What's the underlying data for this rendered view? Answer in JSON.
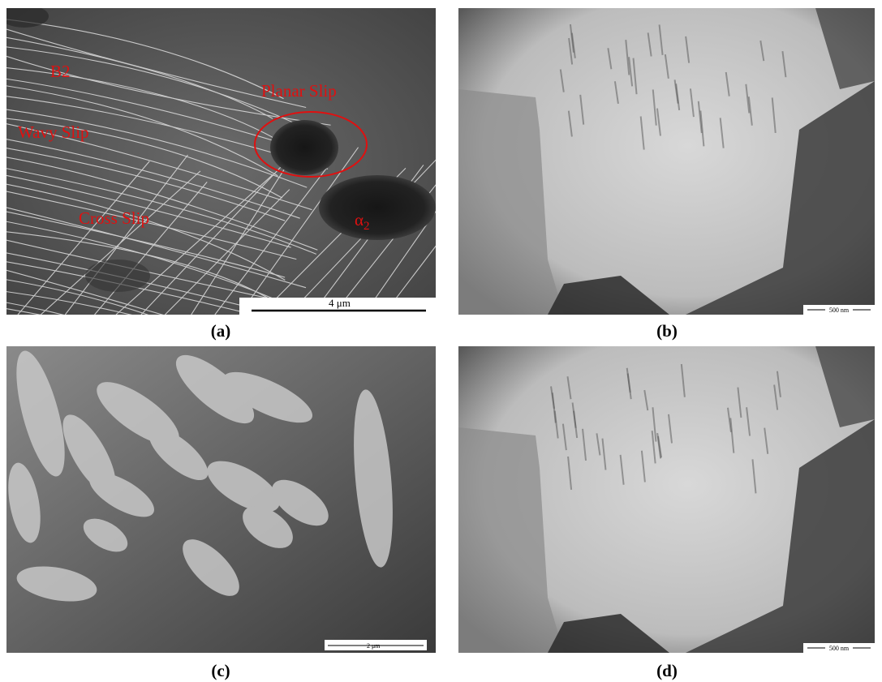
{
  "panels": [
    {
      "caption": "(a)",
      "annotations": [
        "B2",
        "Planar Slip",
        "Wavy Slip",
        "Cross Slip"
      ],
      "phase": {
        "text": "α",
        "subscript": "2"
      },
      "scale_bar": "4 μm"
    },
    {
      "caption": "(b)",
      "scale_bar": "500 nm"
    },
    {
      "caption": "(c)",
      "scale_bar": "2 μm"
    },
    {
      "caption": "(d)",
      "scale_bar": "500 nm"
    }
  ]
}
